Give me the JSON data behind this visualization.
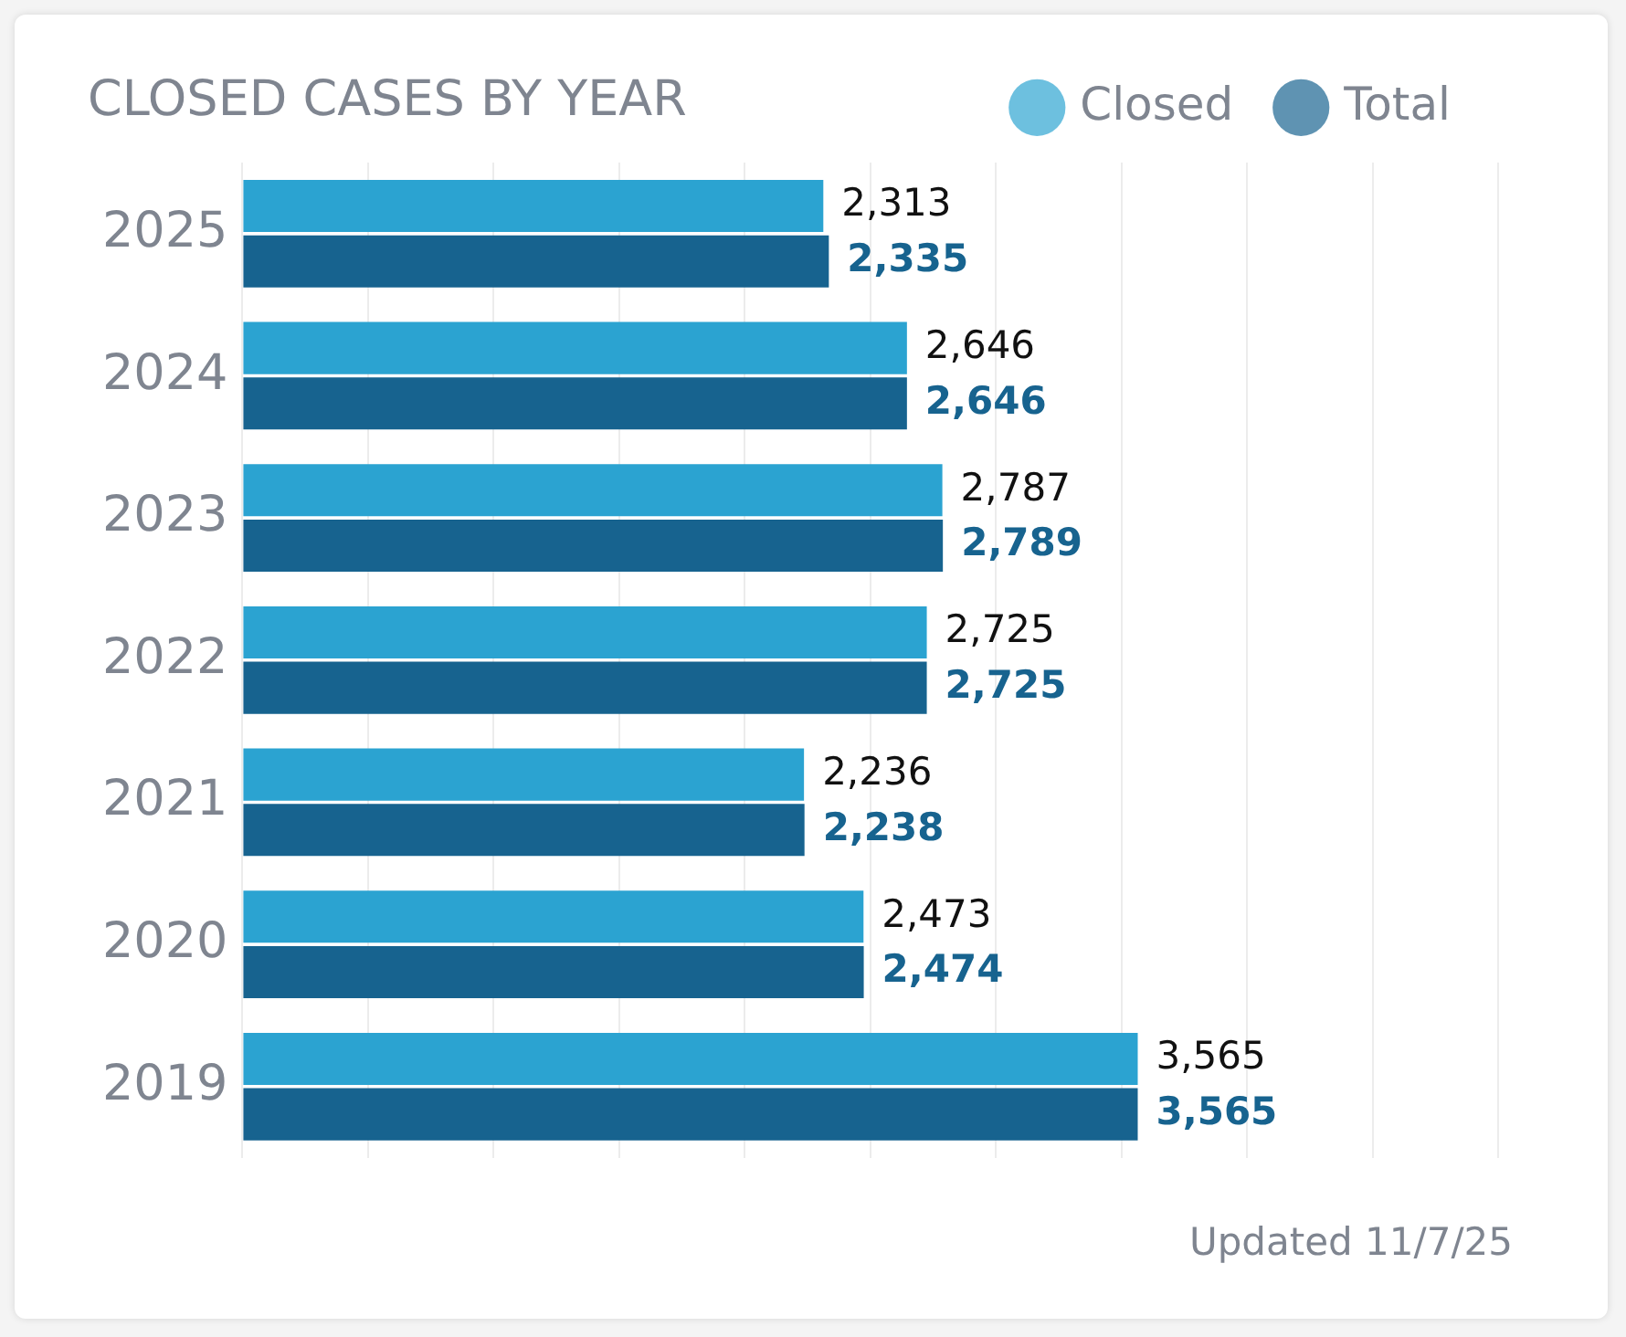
{
  "chart_data": {
    "type": "bar",
    "orientation": "horizontal",
    "title": "CLOSED CASES BY YEAR",
    "categories": [
      "2025",
      "2024",
      "2023",
      "2022",
      "2021",
      "2020",
      "2019"
    ],
    "series": [
      {
        "name": "Closed",
        "color": "#2ba3d1",
        "values": [
          2313,
          2646,
          2787,
          2725,
          2236,
          2473,
          3565
        ],
        "value_labels": [
          "2,313",
          "2,646",
          "2,787",
          "2,725",
          "2,236",
          "2,473",
          "3,565"
        ]
      },
      {
        "name": "Total",
        "color": "#17638f",
        "values": [
          2335,
          2646,
          2789,
          2725,
          2238,
          2474,
          3565
        ],
        "value_labels": [
          "2,335",
          "2,646",
          "2,789",
          "2,725",
          "2,238",
          "2,474",
          "3,565"
        ]
      }
    ],
    "tick_labels": "y",
    "grid": "x",
    "legend": "top right",
    "marker": "circle",
    "annotations": [
      "Updated 11/7/25"
    ]
  }
}
